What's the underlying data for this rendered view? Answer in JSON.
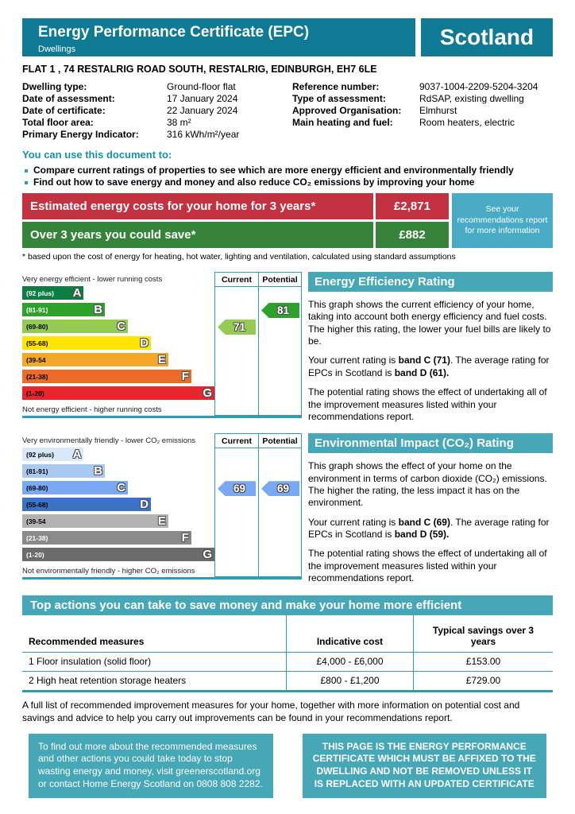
{
  "colors": {
    "brand_teal": "#0f7a94",
    "section_teal": "#46a7b7",
    "line_teal": "#2d9cb5",
    "info_blue": "#4aabc6",
    "cost_red": "#c23240",
    "save_green": "#35843a",
    "heading_teal": "#1790a8"
  },
  "header": {
    "title": "Energy Performance Certificate (EPC)",
    "subtitle": "Dwellings",
    "region": "Scotland"
  },
  "address": "FLAT 1 , 74 RESTALRIG ROAD SOUTH, RESTALRIG, EDINBURGH, EH7 6LE",
  "property_details": {
    "left": [
      {
        "label": "Dwelling type:",
        "value": "Ground-floor flat"
      },
      {
        "label": "Date of assessment:",
        "value": "17 January 2024"
      },
      {
        "label": "Date of certificate:",
        "value": "22 January 2024"
      },
      {
        "label": "Total floor area:",
        "value": "38 m²"
      },
      {
        "label": "Primary Energy Indicator:",
        "value": "316 kWh/m²/year"
      }
    ],
    "right": [
      {
        "label": "Reference number:",
        "value": "9037-1004-2209-5204-3204"
      },
      {
        "label": "Type of assessment:",
        "value": "RdSAP, existing dwelling"
      },
      {
        "label": "Approved Organisation:",
        "value": "Elmhurst"
      },
      {
        "label": "Main heating and fuel:",
        "value": "Room heaters, electric"
      }
    ]
  },
  "usage": {
    "heading": "You can use this document to:",
    "bullets": [
      "Compare current ratings of properties to see which are more energy efficient and environmentally friendly",
      "Find out how to save energy and money and also reduce CO₂ emissions by improving your home"
    ]
  },
  "costs": {
    "rows": [
      {
        "label": "Estimated energy costs for your home for 3 years*",
        "value": "£2,871"
      },
      {
        "label": "Over 3 years you could save*",
        "value": "£882"
      }
    ],
    "aside": "See your recommendations report for more information",
    "footnote": "* based upon the cost of energy for heating, hot water, lighting and ventilation, calculated using standard assumptions"
  },
  "chart_data": [
    {
      "type": "epc-rating-bands",
      "title": "Energy Efficiency Rating",
      "top_label": "Very energy efficient - lower running costs",
      "bottom_label": "Not energy efficient - higher running costs",
      "col_headers": [
        "Current",
        "Potential"
      ],
      "bands": [
        {
          "range": "(92 plus)",
          "letter": "A",
          "width_pct": 32,
          "color": "#0b7d41",
          "text": "#ffffff"
        },
        {
          "range": "(81-91)",
          "letter": "B",
          "width_pct": 43,
          "color": "#2ea12d",
          "text": "#ffffff"
        },
        {
          "range": "(69-80)",
          "letter": "C",
          "width_pct": 55,
          "color": "#95ca53",
          "text": "#000000"
        },
        {
          "range": "(55-68)",
          "letter": "D",
          "width_pct": 67,
          "color": "#ffe500",
          "text": "#000000"
        },
        {
          "range": "(39-54",
          "letter": "E",
          "width_pct": 76,
          "color": "#f2a929",
          "text": "#000000"
        },
        {
          "range": "(21-38)",
          "letter": "F",
          "width_pct": 88,
          "color": "#ec6c25",
          "text": "#000000"
        },
        {
          "range": "(1-20)",
          "letter": "G",
          "width_pct": 100,
          "color": "#e6252d",
          "text": "#000000"
        }
      ],
      "current": {
        "value": 71,
        "band_index": 2,
        "color": "#95ca53"
      },
      "potential": {
        "value": 81,
        "band_index": 1,
        "color": "#2ea12d"
      }
    },
    {
      "type": "epc-rating-bands",
      "title": "Environmental Impact (CO₂) Rating",
      "top_label": "Very environmentally friendly - lower CO₂ emissions",
      "bottom_label": "Not environmentally friendly - higher CO₂ emissions",
      "col_headers": [
        "Current",
        "Potential"
      ],
      "bands": [
        {
          "range": "(92 plus)",
          "letter": "A",
          "width_pct": 32,
          "color": "#d9e9f9",
          "text": "#000000"
        },
        {
          "range": "(81-91)",
          "letter": "B",
          "width_pct": 43,
          "color": "#a9c9f0",
          "text": "#000000"
        },
        {
          "range": "(69-80)",
          "letter": "C",
          "width_pct": 55,
          "color": "#79a8f4",
          "text": "#000000"
        },
        {
          "range": "(55-68)",
          "letter": "D",
          "width_pct": 67,
          "color": "#3a72c6",
          "text": "#000000"
        },
        {
          "range": "(39-54",
          "letter": "E",
          "width_pct": 76,
          "color": "#b3b3b3",
          "text": "#000000"
        },
        {
          "range": "(21-38)",
          "letter": "F",
          "width_pct": 88,
          "color": "#8a8a8a",
          "text": "#ffffff"
        },
        {
          "range": "(1-20)",
          "letter": "G",
          "width_pct": 100,
          "color": "#6b6b6b",
          "text": "#ffffff"
        }
      ],
      "current": {
        "value": 69,
        "band_index": 2,
        "color": "#79a8f4"
      },
      "potential": {
        "value": 69,
        "band_index": 2,
        "color": "#79a8f4"
      }
    }
  ],
  "efficiency_panel": {
    "title": "Energy Efficiency Rating",
    "p1": "This graph shows the current efficiency of your home, taking into account both energy efficiency and fuel costs. The higher this rating, the lower your fuel bills are likely to be.",
    "p2_runs": [
      {
        "t": "Your current rating is "
      },
      {
        "t": "band C (71)",
        "b": true
      },
      {
        "t": ". The average rating for EPCs in Scotland is "
      },
      {
        "t": "band D (61).",
        "b": true
      }
    ],
    "p3": "The potential rating shows the effect of undertaking all of the improvement measures listed within your recommendations report."
  },
  "environment_panel": {
    "title": "Environmental Impact (CO₂) Rating",
    "p1": "This graph shows the effect of your home on the environment in terms of carbon dioxide (CO₂) emissions. The higher the rating, the less impact it has on the environment.",
    "p2_runs": [
      {
        "t": "Your current rating is "
      },
      {
        "t": "band C (69)",
        "b": true
      },
      {
        "t": ". The average rating for EPCs in Scotland is "
      },
      {
        "t": "band D (59).",
        "b": true
      }
    ],
    "p3": "The potential rating shows the effect of undertaking all of the improvement measures listed within your recommendations report."
  },
  "top_actions": {
    "title": "Top actions you can take to save money and make your home more efficient",
    "headers": [
      "Recommended measures",
      "Indicative cost",
      "Typical savings over 3 years"
    ],
    "rows": [
      [
        "1 Floor insulation (solid floor)",
        "£4,000 - £6,000",
        "£153.00"
      ],
      [
        "2 High heat retention storage heaters",
        "£800 - £1,200",
        "£729.00"
      ]
    ]
  },
  "full_list_note": "A full list of recommended improvement measures for your home, together with more information on potential cost and savings and advice to help you carry out improvements can be found in your recommendations report.",
  "footer_boxes": {
    "find_out_more": "To find out more about the recommended measures and other actions you could take today to stop wasting energy and money, visit greenerscotland.org or contact Home Energy Scotland on 0808 808 2282.",
    "affix_notice": "THIS PAGE IS THE ENERGY PERFORMANCE CERTIFICATE WHICH MUST BE AFFIXED TO THE DWELLING AND NOT BE REMOVED UNLESS IT IS REPLACED WITH AN UPDATED CERTIFICATE"
  }
}
